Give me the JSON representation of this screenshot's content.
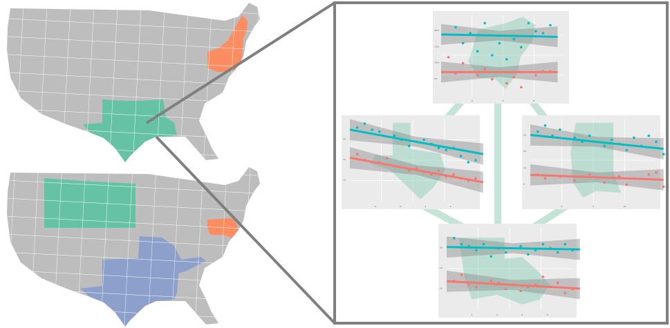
{
  "colors": {
    "background": "#ffffff",
    "land_default": "#bdbdbd",
    "state_border": "#ffffff",
    "group_teal": "#66c2a5",
    "group_orange": "#fc8d62",
    "group_blue": "#8da0cb",
    "zoom_frame": "#7f7f7f",
    "panel_bg": "#ebebeb",
    "grid": "#ffffff",
    "series_cyan": "#00bfc4",
    "series_red": "#f8766d",
    "confidence_band": "#8c8c8c",
    "panel_silhouette": "#66c2a5",
    "panel_link": "#b9e0d1"
  },
  "maps": [
    {
      "id": "top",
      "highlights": [
        {
          "region": "northeast",
          "color_key": "group_orange"
        },
        {
          "region": "south-central",
          "color_key": "group_teal"
        }
      ]
    },
    {
      "id": "bottom",
      "highlights": [
        {
          "region": "northern-plains",
          "color_key": "group_teal"
        },
        {
          "region": "mid-atlantic",
          "color_key": "group_orange"
        },
        {
          "region": "south-central-extended",
          "color_key": "group_blue"
        }
      ]
    }
  ],
  "chart_data": [
    {
      "type": "scatter",
      "panel": "top-northeast",
      "silhouette": "northeast",
      "x_ticks": [
        "2",
        "4",
        "6"
      ],
      "y_ticks": [
        "20m",
        "15m",
        "10m",
        "5m"
      ],
      "series": [
        {
          "color_key": "series_cyan",
          "points": [
            [
              1,
              21
            ],
            [
              2,
              19.5
            ],
            [
              3,
              22
            ],
            [
              4,
              17
            ],
            [
              5,
              18
            ],
            [
              6,
              22
            ],
            [
              7,
              19.5
            ],
            [
              1.5,
              17
            ],
            [
              2.5,
              15
            ],
            [
              3.5,
              14
            ],
            [
              4.5,
              13
            ],
            [
              5.5,
              16
            ],
            [
              6.5,
              20
            ],
            [
              7.5,
              21.5
            ]
          ],
          "trend": [
            [
              0,
              19.2
            ],
            [
              8,
              18.6
            ]
          ]
        },
        {
          "color_key": "series_red",
          "points": [
            [
              0.5,
              13.5
            ],
            [
              1.5,
              12
            ],
            [
              2.5,
              9
            ],
            [
              3.5,
              8
            ],
            [
              4.5,
              7
            ],
            [
              5.5,
              6
            ],
            [
              6.5,
              9
            ],
            [
              7.5,
              10
            ],
            [
              1,
              9.5
            ],
            [
              3,
              10.5
            ],
            [
              5,
              8.5
            ],
            [
              7,
              10
            ]
          ],
          "trend": [
            [
              0,
              9.8
            ],
            [
              8,
              9.8
            ]
          ]
        }
      ]
    },
    {
      "type": "scatter",
      "panel": "middle-left-texas",
      "silhouette": "texas",
      "x_ticks": [
        "-2",
        "0",
        "2",
        "4"
      ],
      "y_ticks": [
        "20",
        "15",
        "10"
      ],
      "series": [
        {
          "color_key": "series_cyan",
          "points": [
            [
              0.5,
              22
            ],
            [
              1,
              23
            ],
            [
              1.5,
              21.5
            ],
            [
              2,
              21
            ],
            [
              3,
              20
            ],
            [
              3.5,
              19
            ],
            [
              4,
              17.5
            ],
            [
              4.5,
              18.5
            ],
            [
              5,
              19
            ],
            [
              5.5,
              18
            ],
            [
              6,
              17
            ],
            [
              6.5,
              16.5
            ],
            [
              7,
              17
            ],
            [
              7.5,
              15
            ],
            [
              8,
              13.5
            ],
            [
              8.5,
              14
            ]
          ],
          "trend": [
            [
              0,
              21.5
            ],
            [
              9,
              15.5
            ]
          ]
        },
        {
          "color_key": "series_red",
          "points": [
            [
              0.5,
              15.5
            ],
            [
              1,
              14
            ],
            [
              2,
              13.5
            ],
            [
              2.5,
              14.5
            ],
            [
              3,
              12.5
            ],
            [
              4,
              11.5
            ],
            [
              4.5,
              12
            ],
            [
              5,
              11
            ],
            [
              5.5,
              10.5
            ],
            [
              6,
              11.5
            ],
            [
              6.5,
              10
            ],
            [
              7,
              10.5
            ],
            [
              7.5,
              9.5
            ],
            [
              8,
              9
            ],
            [
              8.5,
              9.5
            ]
          ],
          "trend": [
            [
              0,
              14.6
            ],
            [
              9,
              8.6
            ]
          ]
        }
      ]
    },
    {
      "type": "scatter",
      "panel": "middle-right-mississippi",
      "silhouette": "mississippi",
      "x_ticks": [
        "0",
        "5",
        "10"
      ],
      "y_ticks": [
        "20",
        "16",
        "12",
        "8"
      ],
      "series": [
        {
          "color_key": "series_cyan",
          "points": [
            [
              0.5,
              21
            ],
            [
              1,
              22.5
            ],
            [
              1.5,
              20
            ],
            [
              2,
              21.5
            ],
            [
              3,
              19.5
            ],
            [
              3.5,
              18.5
            ],
            [
              4,
              20
            ],
            [
              5,
              17.5
            ],
            [
              5.5,
              19
            ],
            [
              6,
              18
            ],
            [
              6.5,
              16.5
            ],
            [
              7,
              19.5
            ],
            [
              7.5,
              17.5
            ],
            [
              8,
              20
            ],
            [
              8.5,
              18.5
            ],
            [
              9,
              15.5
            ]
          ],
          "trend": [
            [
              0,
              20.2
            ],
            [
              9,
              16.8
            ]
          ]
        },
        {
          "color_key": "series_red",
          "points": [
            [
              0.5,
              10.5
            ],
            [
              1,
              9.5
            ],
            [
              2,
              10
            ],
            [
              3,
              9
            ],
            [
              4,
              10.5
            ],
            [
              5,
              8.5
            ],
            [
              6,
              10
            ],
            [
              6.5,
              8
            ],
            [
              7,
              9.5
            ],
            [
              8,
              10.5
            ],
            [
              8.5,
              11
            ],
            [
              9,
              7.5
            ]
          ],
          "trend": [
            [
              0,
              10.4
            ],
            [
              9,
              9.2
            ]
          ]
        }
      ]
    },
    {
      "type": "scatter",
      "panel": "bottom-louisiana",
      "silhouette": "louisiana",
      "x_ticks": [
        "2",
        "4",
        "6",
        "8"
      ],
      "y_ticks": [
        "20",
        "15",
        "10"
      ],
      "series": [
        {
          "color_key": "series_cyan",
          "points": [
            [
              0.5,
              21.5
            ],
            [
              1,
              20
            ],
            [
              1.5,
              19.5
            ],
            [
              2,
              18.5
            ],
            [
              2.5,
              20
            ],
            [
              3,
              17
            ],
            [
              3.5,
              19
            ],
            [
              4,
              18
            ],
            [
              5,
              19.5
            ],
            [
              5.5,
              17.5
            ],
            [
              6,
              18.5
            ],
            [
              6.5,
              20
            ],
            [
              7,
              19
            ],
            [
              7.5,
              18
            ],
            [
              8,
              20
            ],
            [
              8.5,
              18.5
            ]
          ],
          "trend": [
            [
              0,
              19.3
            ],
            [
              9,
              18.7
            ]
          ]
        },
        {
          "color_key": "series_red",
          "points": [
            [
              0.5,
              11
            ],
            [
              1,
              12.5
            ],
            [
              1.5,
              10
            ],
            [
              2,
              9.5
            ],
            [
              3,
              11
            ],
            [
              3.5,
              10.5
            ],
            [
              4,
              9
            ],
            [
              4.5,
              10
            ],
            [
              5,
              8.5
            ],
            [
              5.5,
              9.5
            ],
            [
              6,
              10
            ],
            [
              6.5,
              12
            ],
            [
              7,
              9.5
            ],
            [
              7.5,
              10.5
            ],
            [
              8,
              8
            ],
            [
              8.5,
              9
            ]
          ],
          "trend": [
            [
              0,
              10.9
            ],
            [
              9,
              9.1
            ]
          ]
        }
      ]
    }
  ]
}
